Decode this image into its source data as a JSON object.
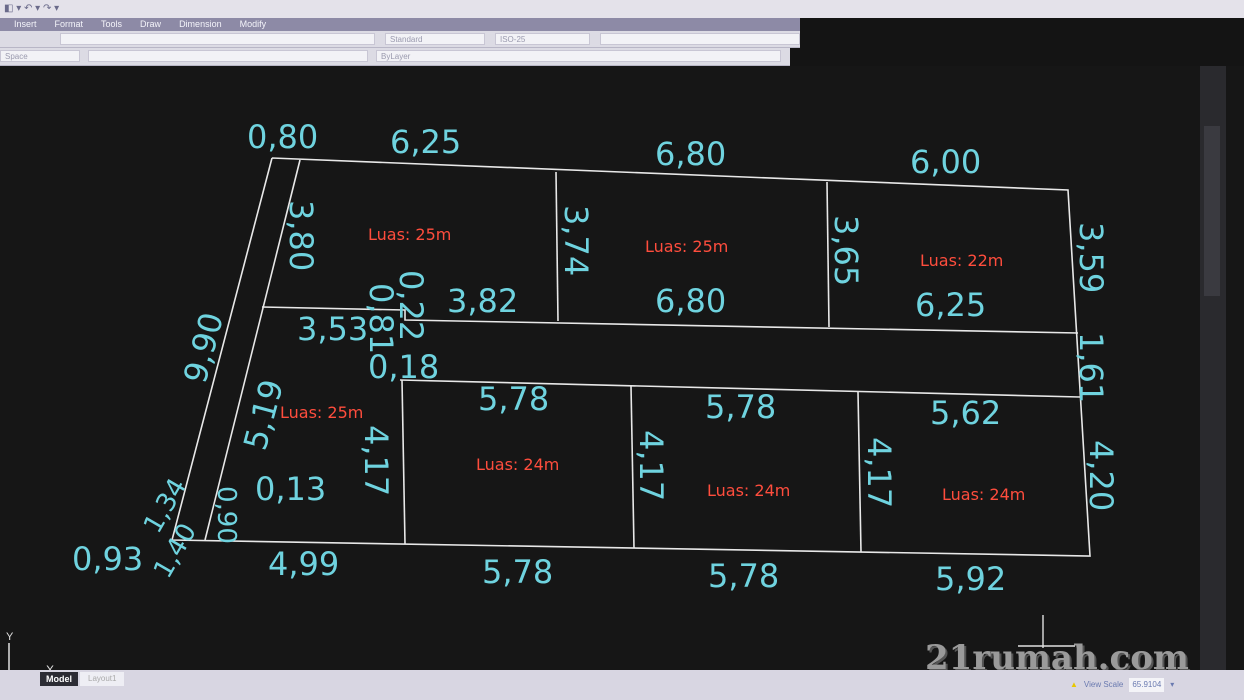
{
  "menu": {
    "items": [
      "Insert",
      "Format",
      "Tools",
      "Draw",
      "Dimension",
      "Modify"
    ]
  },
  "toolbar": {
    "text_style": "Standard",
    "dim_style": "ISO-25",
    "layer": "ByLayer",
    "workspace": "Space"
  },
  "tabs": {
    "model": "Model",
    "layout": "Layout1"
  },
  "status": {
    "view_scale_label": "View Scale",
    "view_scale_value": "65.9104"
  },
  "ucs": {
    "x": "X",
    "y": "Y"
  },
  "watermark": "21rumah.com",
  "colors": {
    "background": "#161616",
    "dimension_text": "#6fd3df",
    "area_text": "#ff4d3d",
    "lines": "#e8e8e8"
  },
  "drawing": {
    "dimensions": [
      "0,80",
      "6,25",
      "6,80",
      "6,00",
      "3,80",
      "3,74",
      "3,65",
      "3,59",
      "9,90",
      "0,81",
      "0,22",
      "3,82",
      "6,80",
      "6,25",
      "3,53",
      "0,18",
      "1,61",
      "5,19",
      "5,78",
      "5,78",
      "5,62",
      "4,17",
      "4,17",
      "4,17",
      "4,20",
      "0,13",
      "1,34",
      "0,90",
      "0,93",
      "1,40",
      "4,99",
      "5,78",
      "5,78",
      "5,92"
    ],
    "lots": [
      "Luas: 25m",
      "Luas: 25m",
      "Luas: 22m",
      "Luas: 25m",
      "Luas: 24m",
      "Luas: 24m",
      "Luas: 24m"
    ]
  }
}
